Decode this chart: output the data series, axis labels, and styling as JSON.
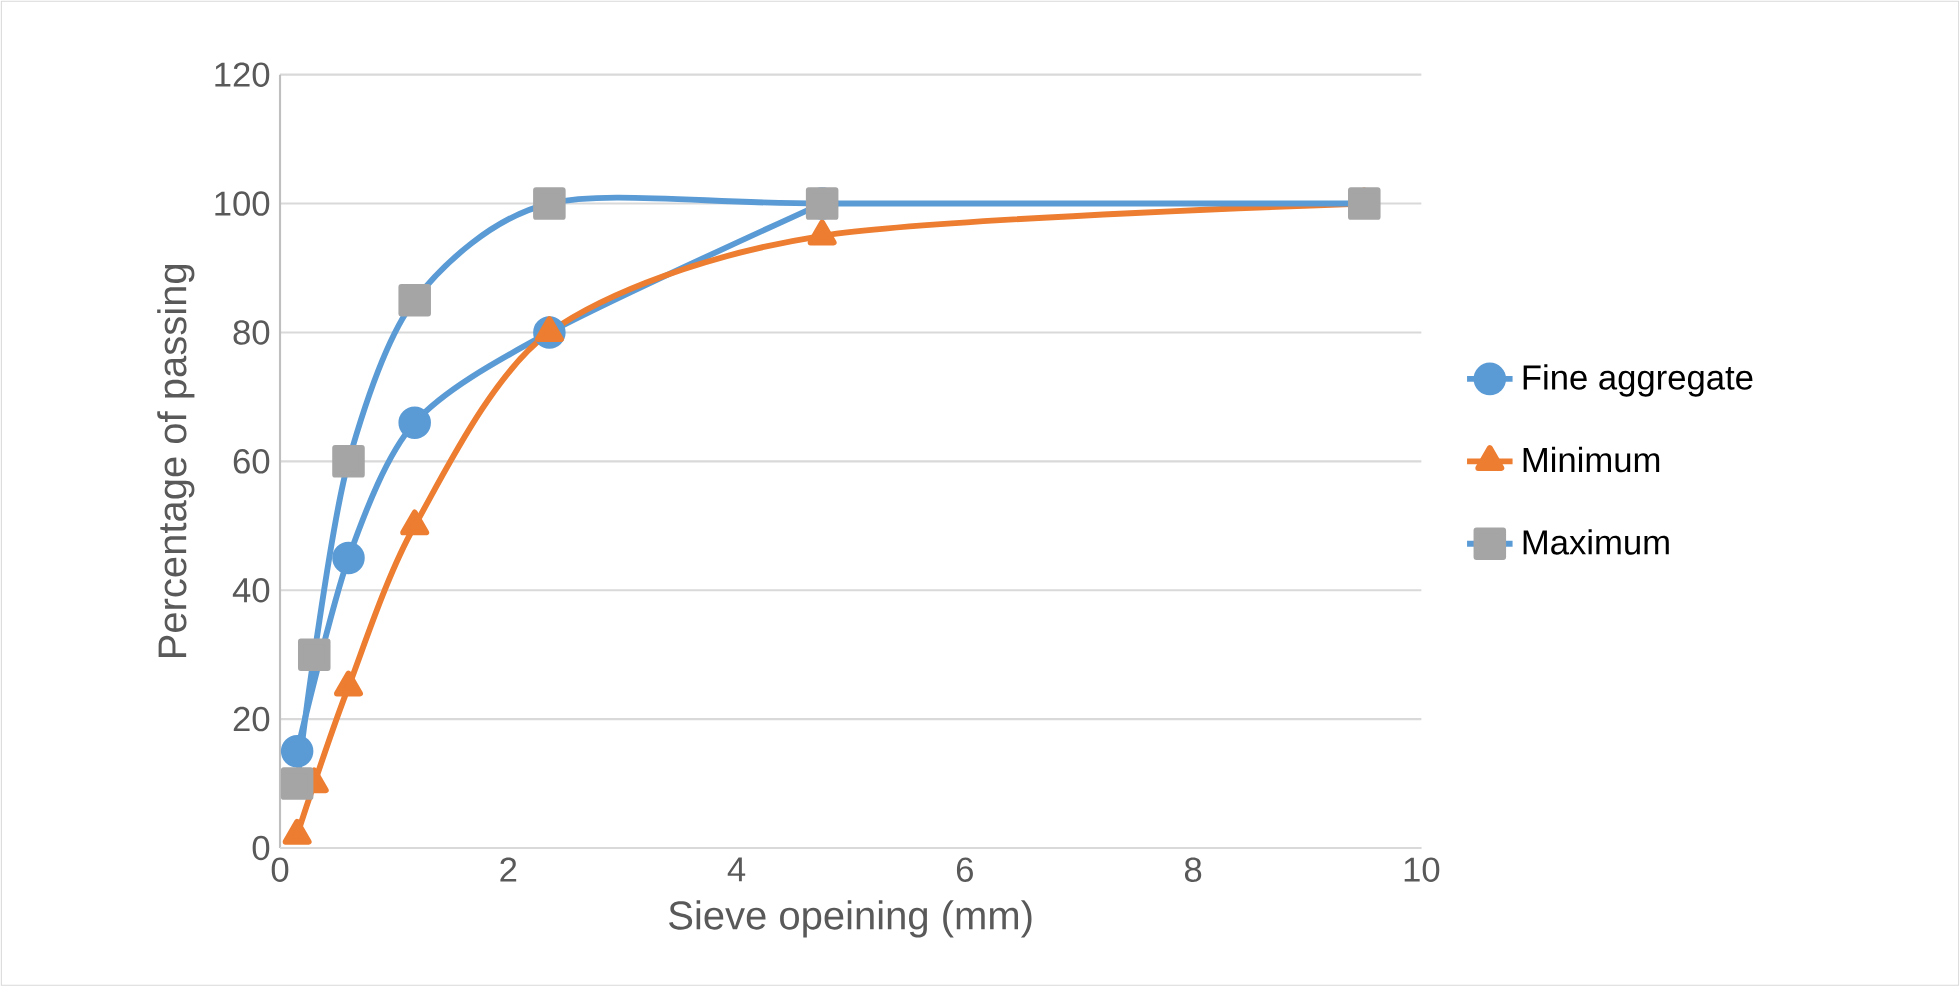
{
  "chart_data": {
    "type": "line",
    "xlabel": "Sieve opeining (mm)",
    "ylabel": "Percentage of passing",
    "xlim": [
      0,
      10
    ],
    "xticks": [
      0,
      2,
      4,
      6,
      8,
      10
    ],
    "ylim": [
      0,
      120
    ],
    "yticks": [
      0,
      20,
      40,
      60,
      80,
      100,
      120
    ],
    "grid": "y",
    "legend": "right",
    "line_style": "solid",
    "series": [
      {
        "name": "Fine aggregate",
        "color": "#5b9bd5",
        "marker": "circle",
        "x": [
          0.15,
          0.6,
          1.18,
          2.36,
          4.75
        ],
        "values": [
          15,
          45,
          66,
          80,
          100
        ]
      },
      {
        "name": "Minimum",
        "color": "#ed7d31",
        "marker": "triangle",
        "x": [
          0.15,
          0.3,
          0.6,
          1.18,
          2.36,
          4.75,
          9.5
        ],
        "values": [
          2,
          10,
          25,
          50,
          80,
          95,
          100
        ]
      },
      {
        "name": "Maximum",
        "color": "#5b9bd5",
        "colors": [
          "#a5a5a5",
          "#a5a5a5",
          "#a5a5a5",
          "#a5a5a5",
          "#a5a5a5",
          "#a5a5a5",
          "#a5a5a5"
        ],
        "marker": "square",
        "x": [
          0.15,
          0.3,
          0.6,
          1.18,
          2.36,
          4.75,
          9.5
        ],
        "values": [
          10,
          30,
          60,
          85,
          100,
          100,
          100
        ]
      }
    ]
  }
}
